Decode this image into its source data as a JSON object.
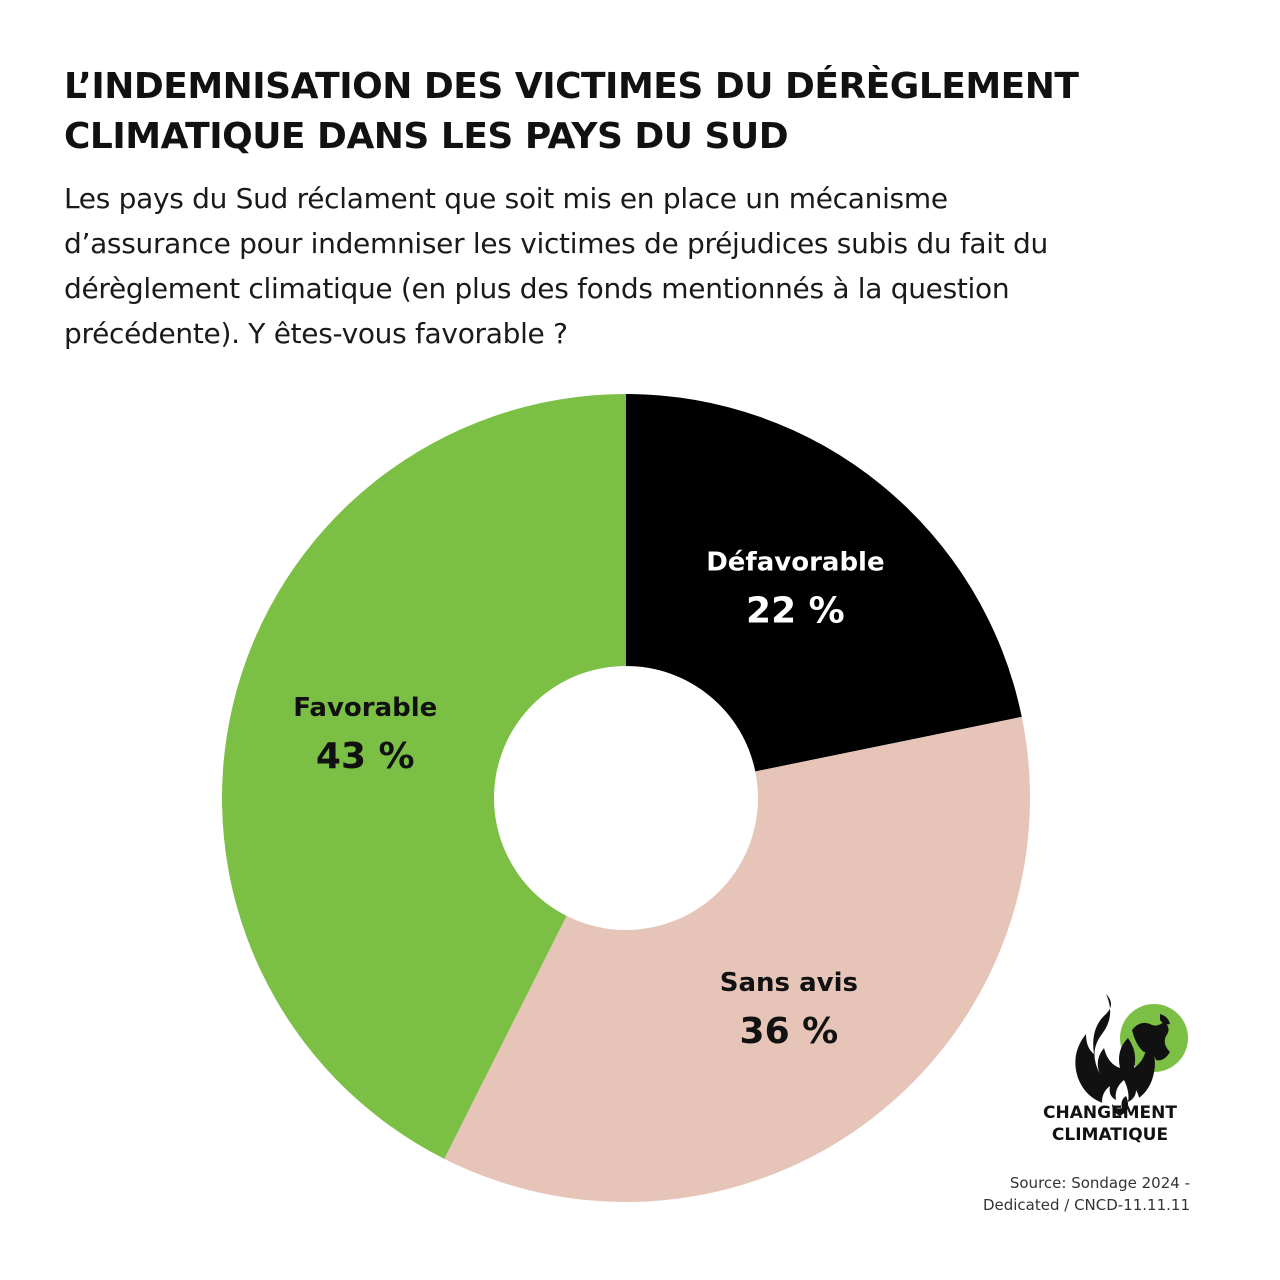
{
  "header": {
    "title_line1": "L’INDEMNISATION DES VICTIMES DU DÉRÈGLEMENT",
    "title_line2": "CLIMATIQUE DANS LES PAYS DU SUD",
    "question_line1": "Les pays du Sud réclament que soit mis en place un mécanisme",
    "question_line2": "d’assurance pour indemniser les victimes de préjudices subis du fait du",
    "question_line3": "dérèglement climatique (en plus des fonds mentionnés à la question",
    "question_line4": "précédente). Y êtes-vous favorable ?"
  },
  "chart_data": {
    "type": "pie",
    "donut": true,
    "start": "12 o'clock, clockwise",
    "slices": [
      {
        "label": "Défavorable",
        "value": 22,
        "value_label": "22 %",
        "color": "#000000",
        "text_color": "#ffffff"
      },
      {
        "label": "Sans avis",
        "value": 36,
        "value_label": "36 %",
        "color": "#e6c4b8",
        "text_color": "#111111"
      },
      {
        "label": "Favorable",
        "value": 43,
        "value_label": "43 %",
        "color": "#7bbf45",
        "text_color": "#111111"
      }
    ]
  },
  "logo": {
    "name": "flame-globe-icon",
    "line1": "CHANGEMENT",
    "line2": "CLIMATIQUE"
  },
  "source": {
    "line1": "Source: Sondage 2024 -",
    "line2": "Dedicated /  CNCD-11.11.11"
  }
}
